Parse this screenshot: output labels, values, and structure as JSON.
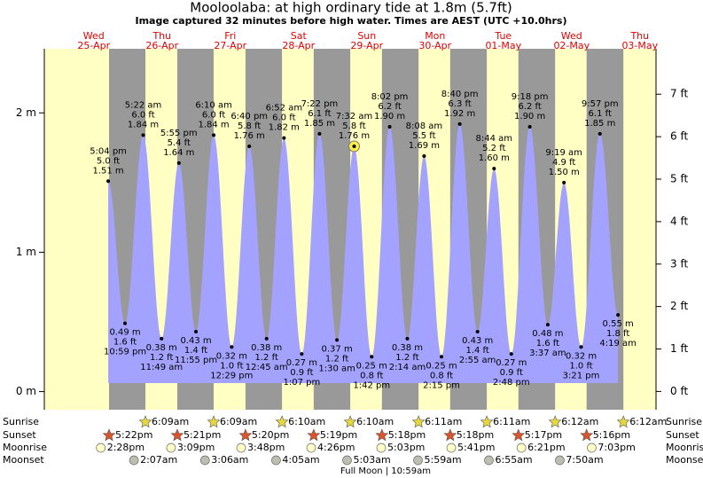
{
  "chart_data": {
    "type": "tide",
    "title": "Mooloolaba: at high  ordinary tide at 1.8m (5.7ft)",
    "subtitle": "Image captured 32 minutes before high water. Times are AEST (UTC +10.0hrs)",
    "days": [
      {
        "weekday": "Wed",
        "date": "25-Apr"
      },
      {
        "weekday": "Thu",
        "date": "26-Apr"
      },
      {
        "weekday": "Fri",
        "date": "27-Apr"
      },
      {
        "weekday": "Sat",
        "date": "28-Apr"
      },
      {
        "weekday": "Sun",
        "date": "29-Apr"
      },
      {
        "weekday": "Mon",
        "date": "30-Apr"
      },
      {
        "weekday": "Tue",
        "date": "01-May"
      },
      {
        "weekday": "Wed",
        "date": "02-May"
      },
      {
        "weekday": "Thu",
        "date": "03-May"
      }
    ],
    "ylim": [
      -0.13,
      2.46
    ],
    "yticks": [
      {
        "value": 0,
        "label": "0 m"
      },
      {
        "value": 1,
        "label": "1 m"
      },
      {
        "value": 2,
        "label": "2 m"
      }
    ],
    "y2lim": [
      -0.43,
      8.07
    ],
    "y2ticks": [
      {
        "value": 0,
        "label": "0 ft"
      },
      {
        "value": 1,
        "label": "1 ft"
      },
      {
        "value": 2,
        "label": "2 ft"
      },
      {
        "value": 3,
        "label": "3 ft"
      },
      {
        "value": 4,
        "label": "4 ft"
      },
      {
        "value": 5,
        "label": "5 ft"
      },
      {
        "value": 6,
        "label": "6 ft"
      },
      {
        "value": 7,
        "label": "7 ft"
      }
    ],
    "color": "#a3a3ff",
    "times": [
      "5:04 pm",
      "10:59 pm",
      "5:22 am",
      "11:49 am",
      "5:55 pm",
      "11:55 pm",
      "6:10 am",
      "12:29 pm",
      "6:40 pm",
      "12:45 am",
      "6:52 am",
      "1:07 pm",
      "7:22 pm",
      "1:30 am",
      "7:32 am",
      "1:42 pm",
      "8:02 pm",
      "2:14 am",
      "8:08 am",
      "2:15 pm",
      "8:40 pm",
      "2:55 am",
      "8:44 am",
      "2:48 pm",
      "9:18 pm",
      "3:37 am",
      "9:19 am",
      "3:21 pm",
      "9:57 pm",
      "4:19 am"
    ],
    "values": [
      1.51,
      0.49,
      1.84,
      0.38,
      1.64,
      0.43,
      1.84,
      0.32,
      1.76,
      0.38,
      1.82,
      0.27,
      1.85,
      0.37,
      1.76,
      0.25,
      1.9,
      0.38,
      1.69,
      0.25,
      1.92,
      0.43,
      1.6,
      0.27,
      1.9,
      0.48,
      1.5,
      0.32,
      1.85,
      0.55
    ],
    "value_labels": [
      "1.51 m",
      "0.49 m",
      "1.84 m",
      "0.38 m",
      "1.64 m",
      "0.43 m",
      "1.84 m",
      "0.32 m",
      "1.76 m",
      "0.38 m",
      "1.82 m",
      "0.27 m",
      "1.85 m",
      "0.37 m",
      "1.76 m",
      "0.25 m",
      "1.90 m",
      "0.38 m",
      "1.69 m",
      "0.25 m",
      "1.92 m",
      "0.43 m",
      "1.60 m",
      "0.27 m",
      "1.90 m",
      "0.48 m",
      "1.50 m",
      "0.32 m",
      "1.85 m",
      "0.55 m"
    ],
    "ft_labels": [
      "5.0 ft",
      "1.6 ft",
      "6.0 ft",
      "1.2 ft",
      "5.4 ft",
      "1.4 ft",
      "6.0 ft",
      "1.0 ft",
      "5.8 ft",
      "1.2 ft",
      "6.0 ft",
      "0.9 ft",
      "6.1 ft",
      "1.2 ft",
      "5.8 ft",
      "0.8 ft",
      "6.2 ft",
      "1.2 ft",
      "5.5 ft",
      "0.8 ft",
      "6.3 ft",
      "1.4 ft",
      "5.2 ft",
      "0.9 ft",
      "6.2 ft",
      "1.6 ft",
      "4.9 ft",
      "1.0 ft",
      "6.1 ft",
      "1.8 ft"
    ],
    "astronomy": [
      {
        "name": "Sunrise",
        "times": [
          "6:09am",
          "6:09am",
          "6:10am",
          "6:10am",
          "6:11am",
          "6:11am",
          "6:12am",
          "6:12am"
        ]
      },
      {
        "name": "Sunset",
        "times": [
          "5:22pm",
          "5:21pm",
          "5:20pm",
          "5:19pm",
          "5:18pm",
          "5:18pm",
          "5:17pm",
          "5:16pm"
        ]
      },
      {
        "name": "Moonrise",
        "times": [
          "2:28pm",
          "3:09pm",
          "3:48pm",
          "4:26pm",
          "5:03pm",
          "5:41pm",
          "6:21pm",
          "7:03pm"
        ]
      },
      {
        "name": "Moonset",
        "times": [
          "2:07am",
          "3:06am",
          "4:05am",
          "5:03am",
          "5:59am",
          "6:55am",
          "7:50am"
        ]
      }
    ],
    "note": "Full Moon | 10:59am"
  }
}
